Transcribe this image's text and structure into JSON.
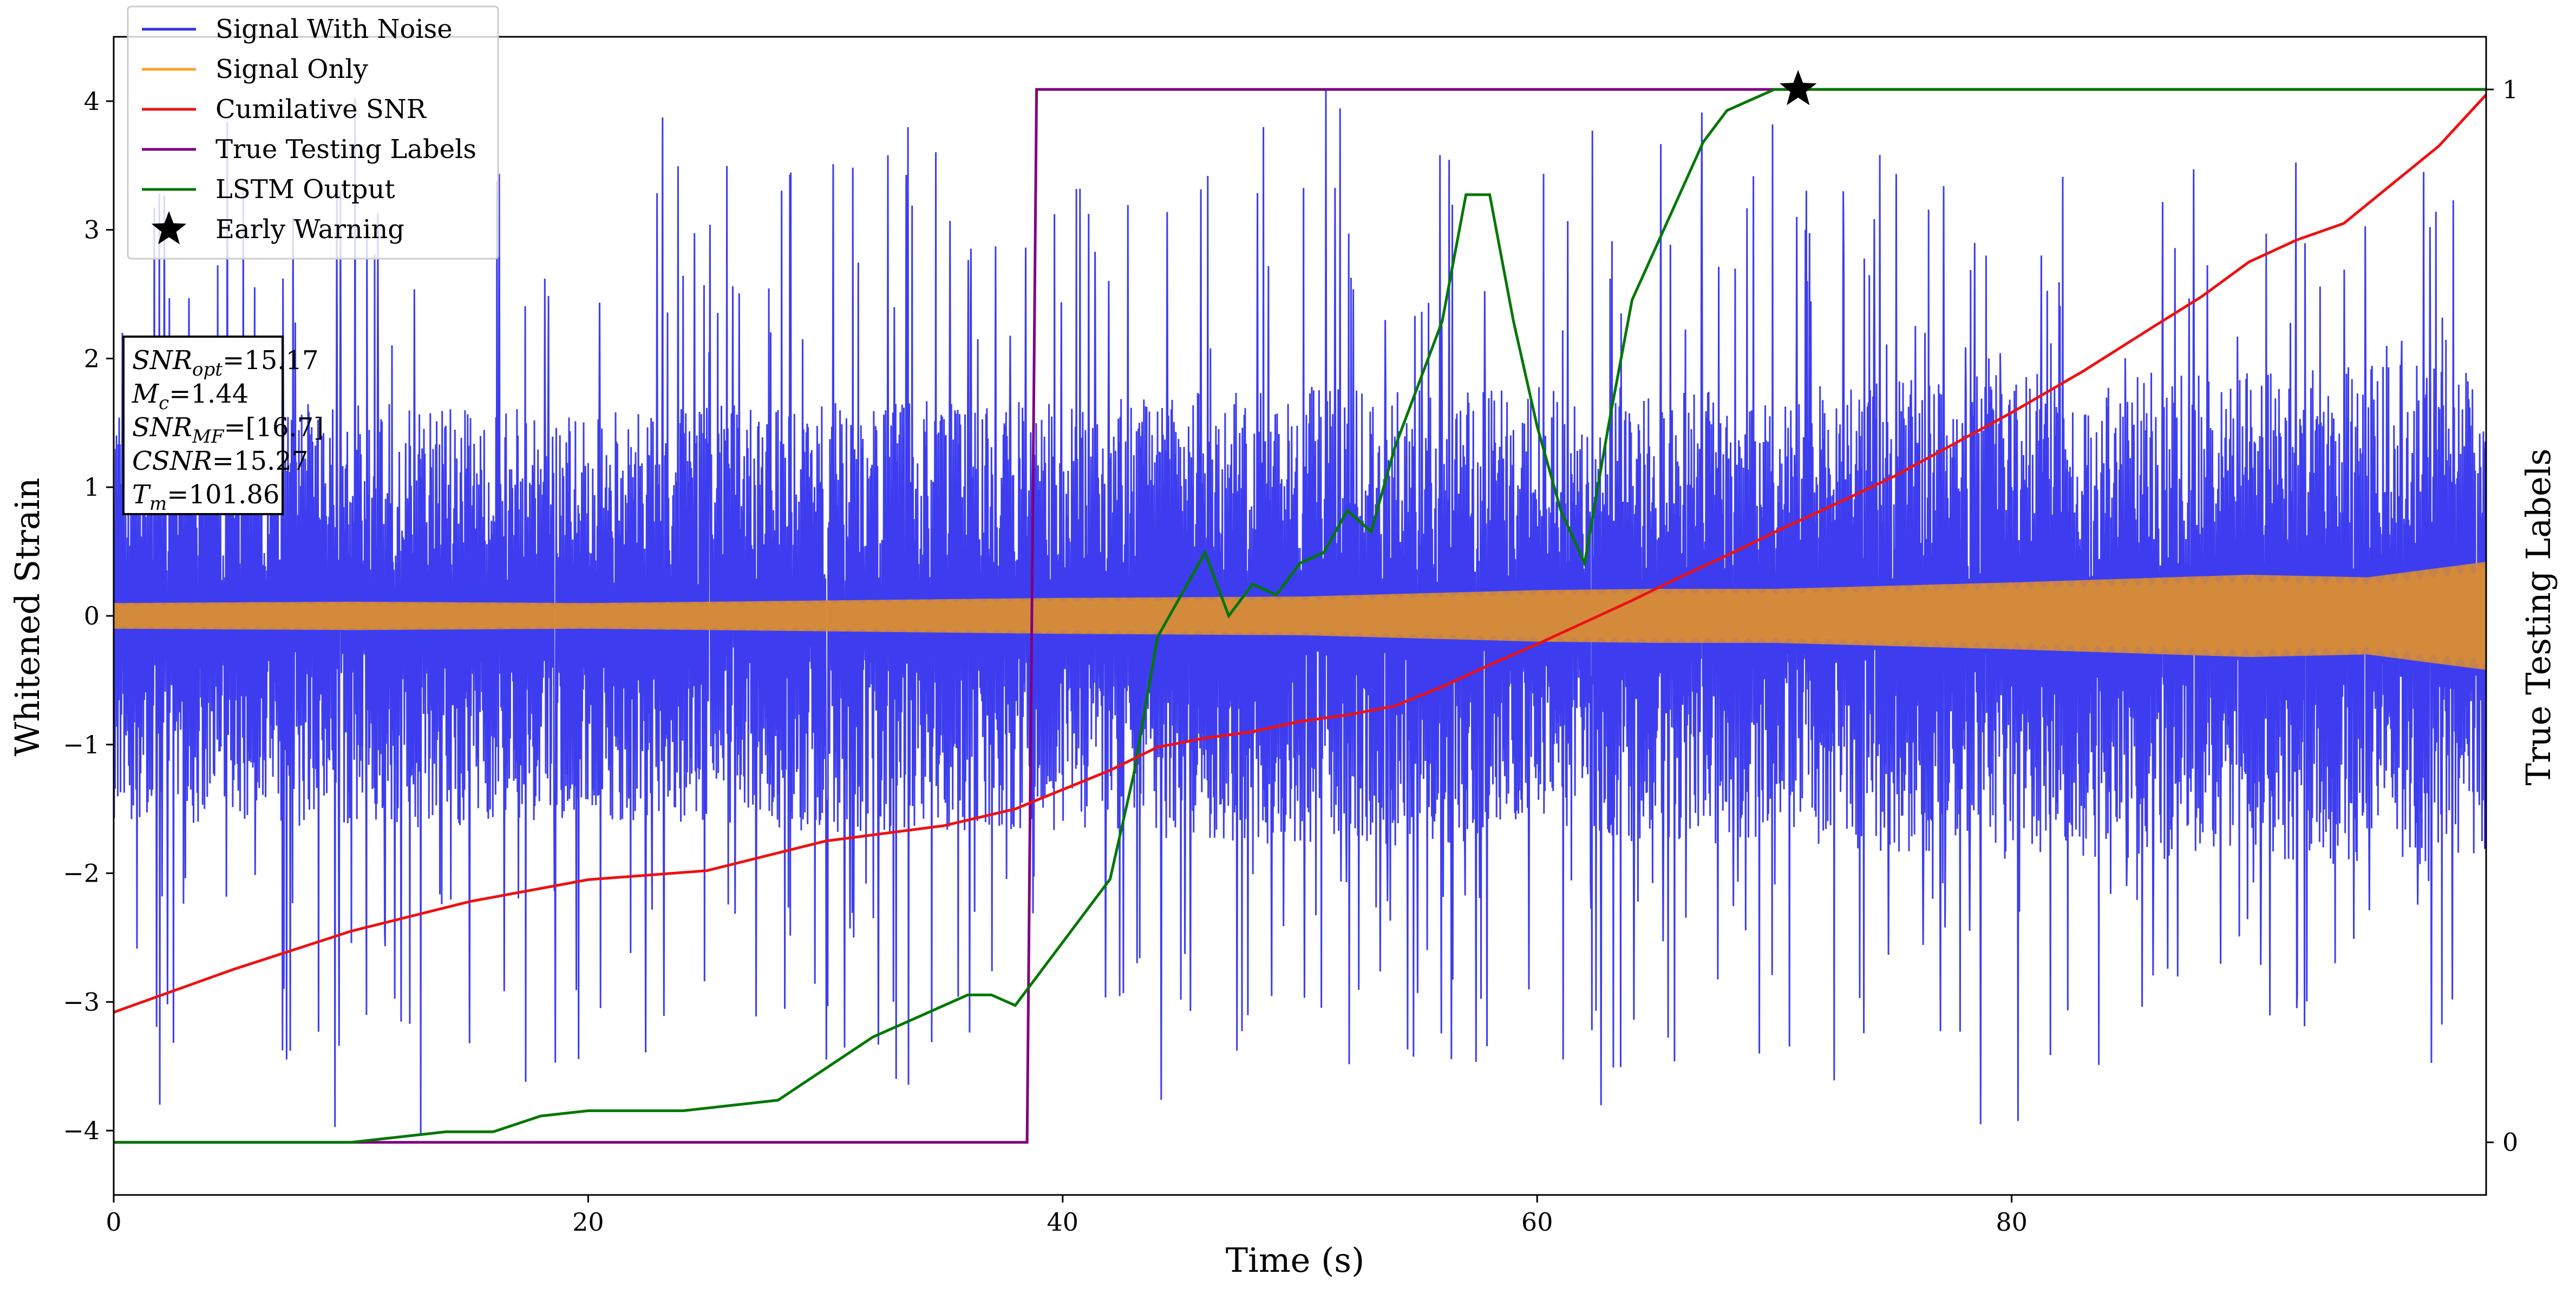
{
  "chart_data": {
    "type": "line",
    "xlabel": "Time (s)",
    "ylabel": "Whitened Strain",
    "y2label": "True Testing Labels",
    "xlim": [
      0,
      100
    ],
    "ylim": [
      -4.5,
      4.5
    ],
    "y2lim": [
      -0.05,
      1.05
    ],
    "x_ticks": [
      0,
      20,
      40,
      60,
      80
    ],
    "x_tick_labels": [
      "0",
      "20",
      "40",
      "60",
      "80"
    ],
    "y_ticks": [
      -4,
      -3,
      -2,
      -1,
      0,
      1,
      2,
      3,
      4
    ],
    "y_tick_labels": [
      "−4",
      "−3",
      "−2",
      "−1",
      "0",
      "1",
      "2",
      "3",
      "4"
    ],
    "y2_ticks": [
      0,
      1
    ],
    "y2_tick_labels": [
      "0",
      "1"
    ],
    "legend_position": "top-left",
    "grid": false,
    "series": [
      {
        "name": "Signal With Noise",
        "color": "#3333ee",
        "axis": "left",
        "style": "dense-noise",
        "envelope_x": [
          0,
          10,
          20,
          30,
          40,
          50,
          60,
          70,
          80,
          90,
          100
        ],
        "typical_upper": [
          1.5,
          1.6,
          1.5,
          1.6,
          1.6,
          1.7,
          1.7,
          1.7,
          1.8,
          1.8,
          1.9
        ],
        "typical_lower": [
          -1.5,
          -1.6,
          -1.5,
          -1.6,
          -1.6,
          -1.7,
          -1.7,
          -1.7,
          -1.8,
          -1.8,
          -1.9
        ],
        "spike_max": 4.1,
        "spike_min": -4.05
      },
      {
        "name": "Signal Only",
        "color": "#f5a623",
        "axis": "left",
        "style": "envelope",
        "envelope_x": [
          0,
          10,
          20,
          30,
          40,
          50,
          60,
          65,
          70,
          80,
          90,
          95,
          100
        ],
        "amplitude": [
          0.1,
          0.11,
          0.1,
          0.12,
          0.14,
          0.15,
          0.2,
          0.21,
          0.21,
          0.26,
          0.32,
          0.3,
          0.42
        ]
      },
      {
        "name": "Cumilative SNR",
        "color": "#ee1111",
        "axis": "left",
        "x": [
          0,
          5,
          10,
          15,
          20,
          25,
          30,
          35,
          38,
          40,
          42,
          44,
          46,
          48,
          50,
          52,
          54,
          56,
          58,
          60,
          62,
          64,
          66,
          68,
          70,
          72,
          75,
          78,
          80,
          83,
          86,
          88,
          90,
          92,
          94,
          96,
          98,
          100
        ],
        "y": [
          -3.08,
          -2.75,
          -2.45,
          -2.22,
          -2.05,
          -1.98,
          -1.75,
          -1.63,
          -1.5,
          -1.35,
          -1.2,
          -1.02,
          -0.95,
          -0.9,
          -0.82,
          -0.77,
          -0.7,
          -0.55,
          -0.38,
          -0.22,
          -0.05,
          0.12,
          0.3,
          0.47,
          0.65,
          0.82,
          1.08,
          1.38,
          1.58,
          1.9,
          2.25,
          2.48,
          2.75,
          2.92,
          3.05,
          3.35,
          3.65,
          4.05
        ]
      },
      {
        "name": "True Testing Labels",
        "color": "#800080",
        "axis": "right",
        "x": [
          0,
          38.5,
          38.9,
          100
        ],
        "y": [
          0,
          0,
          1,
          1
        ]
      },
      {
        "name": "LSTM Output",
        "color": "#007700",
        "axis": "right",
        "x": [
          0,
          10,
          12,
          14,
          16,
          18,
          20,
          22,
          24,
          26,
          28,
          30,
          32,
          34,
          35,
          36,
          37,
          38,
          39,
          40,
          41,
          42,
          43,
          44,
          45,
          46,
          47,
          48,
          49,
          50,
          51,
          52,
          53,
          54,
          55,
          56,
          57,
          58,
          59,
          60,
          61,
          62,
          63,
          64,
          65,
          66,
          67,
          68,
          69,
          70,
          71,
          100
        ],
        "y": [
          0,
          0,
          0.005,
          0.01,
          0.01,
          0.025,
          0.03,
          0.03,
          0.03,
          0.035,
          0.04,
          0.07,
          0.1,
          0.12,
          0.13,
          0.14,
          0.14,
          0.13,
          0.16,
          0.19,
          0.22,
          0.25,
          0.35,
          0.48,
          0.52,
          0.56,
          0.5,
          0.53,
          0.52,
          0.55,
          0.56,
          0.6,
          0.58,
          0.66,
          0.72,
          0.78,
          0.9,
          0.9,
          0.78,
          0.68,
          0.6,
          0.55,
          0.68,
          0.8,
          0.85,
          0.9,
          0.95,
          0.98,
          0.99,
          1,
          1,
          1
        ]
      }
    ],
    "early_warning": {
      "name": "Early Warning",
      "x": 71,
      "y2": 1,
      "color": "#000000"
    },
    "annotation_lines": [
      {
        "symbol": "SNR",
        "sub": "opt",
        "value": "=15.17"
      },
      {
        "symbol": "M",
        "sub": "c",
        "value": "=1.44"
      },
      {
        "symbol": "SNR",
        "sub": "MF",
        "value": "=[16.7]"
      },
      {
        "symbol": "CSNR",
        "sub": "",
        "value": "=15.27"
      },
      {
        "symbol": "T",
        "sub": "m",
        "value": "=101.86"
      }
    ]
  }
}
